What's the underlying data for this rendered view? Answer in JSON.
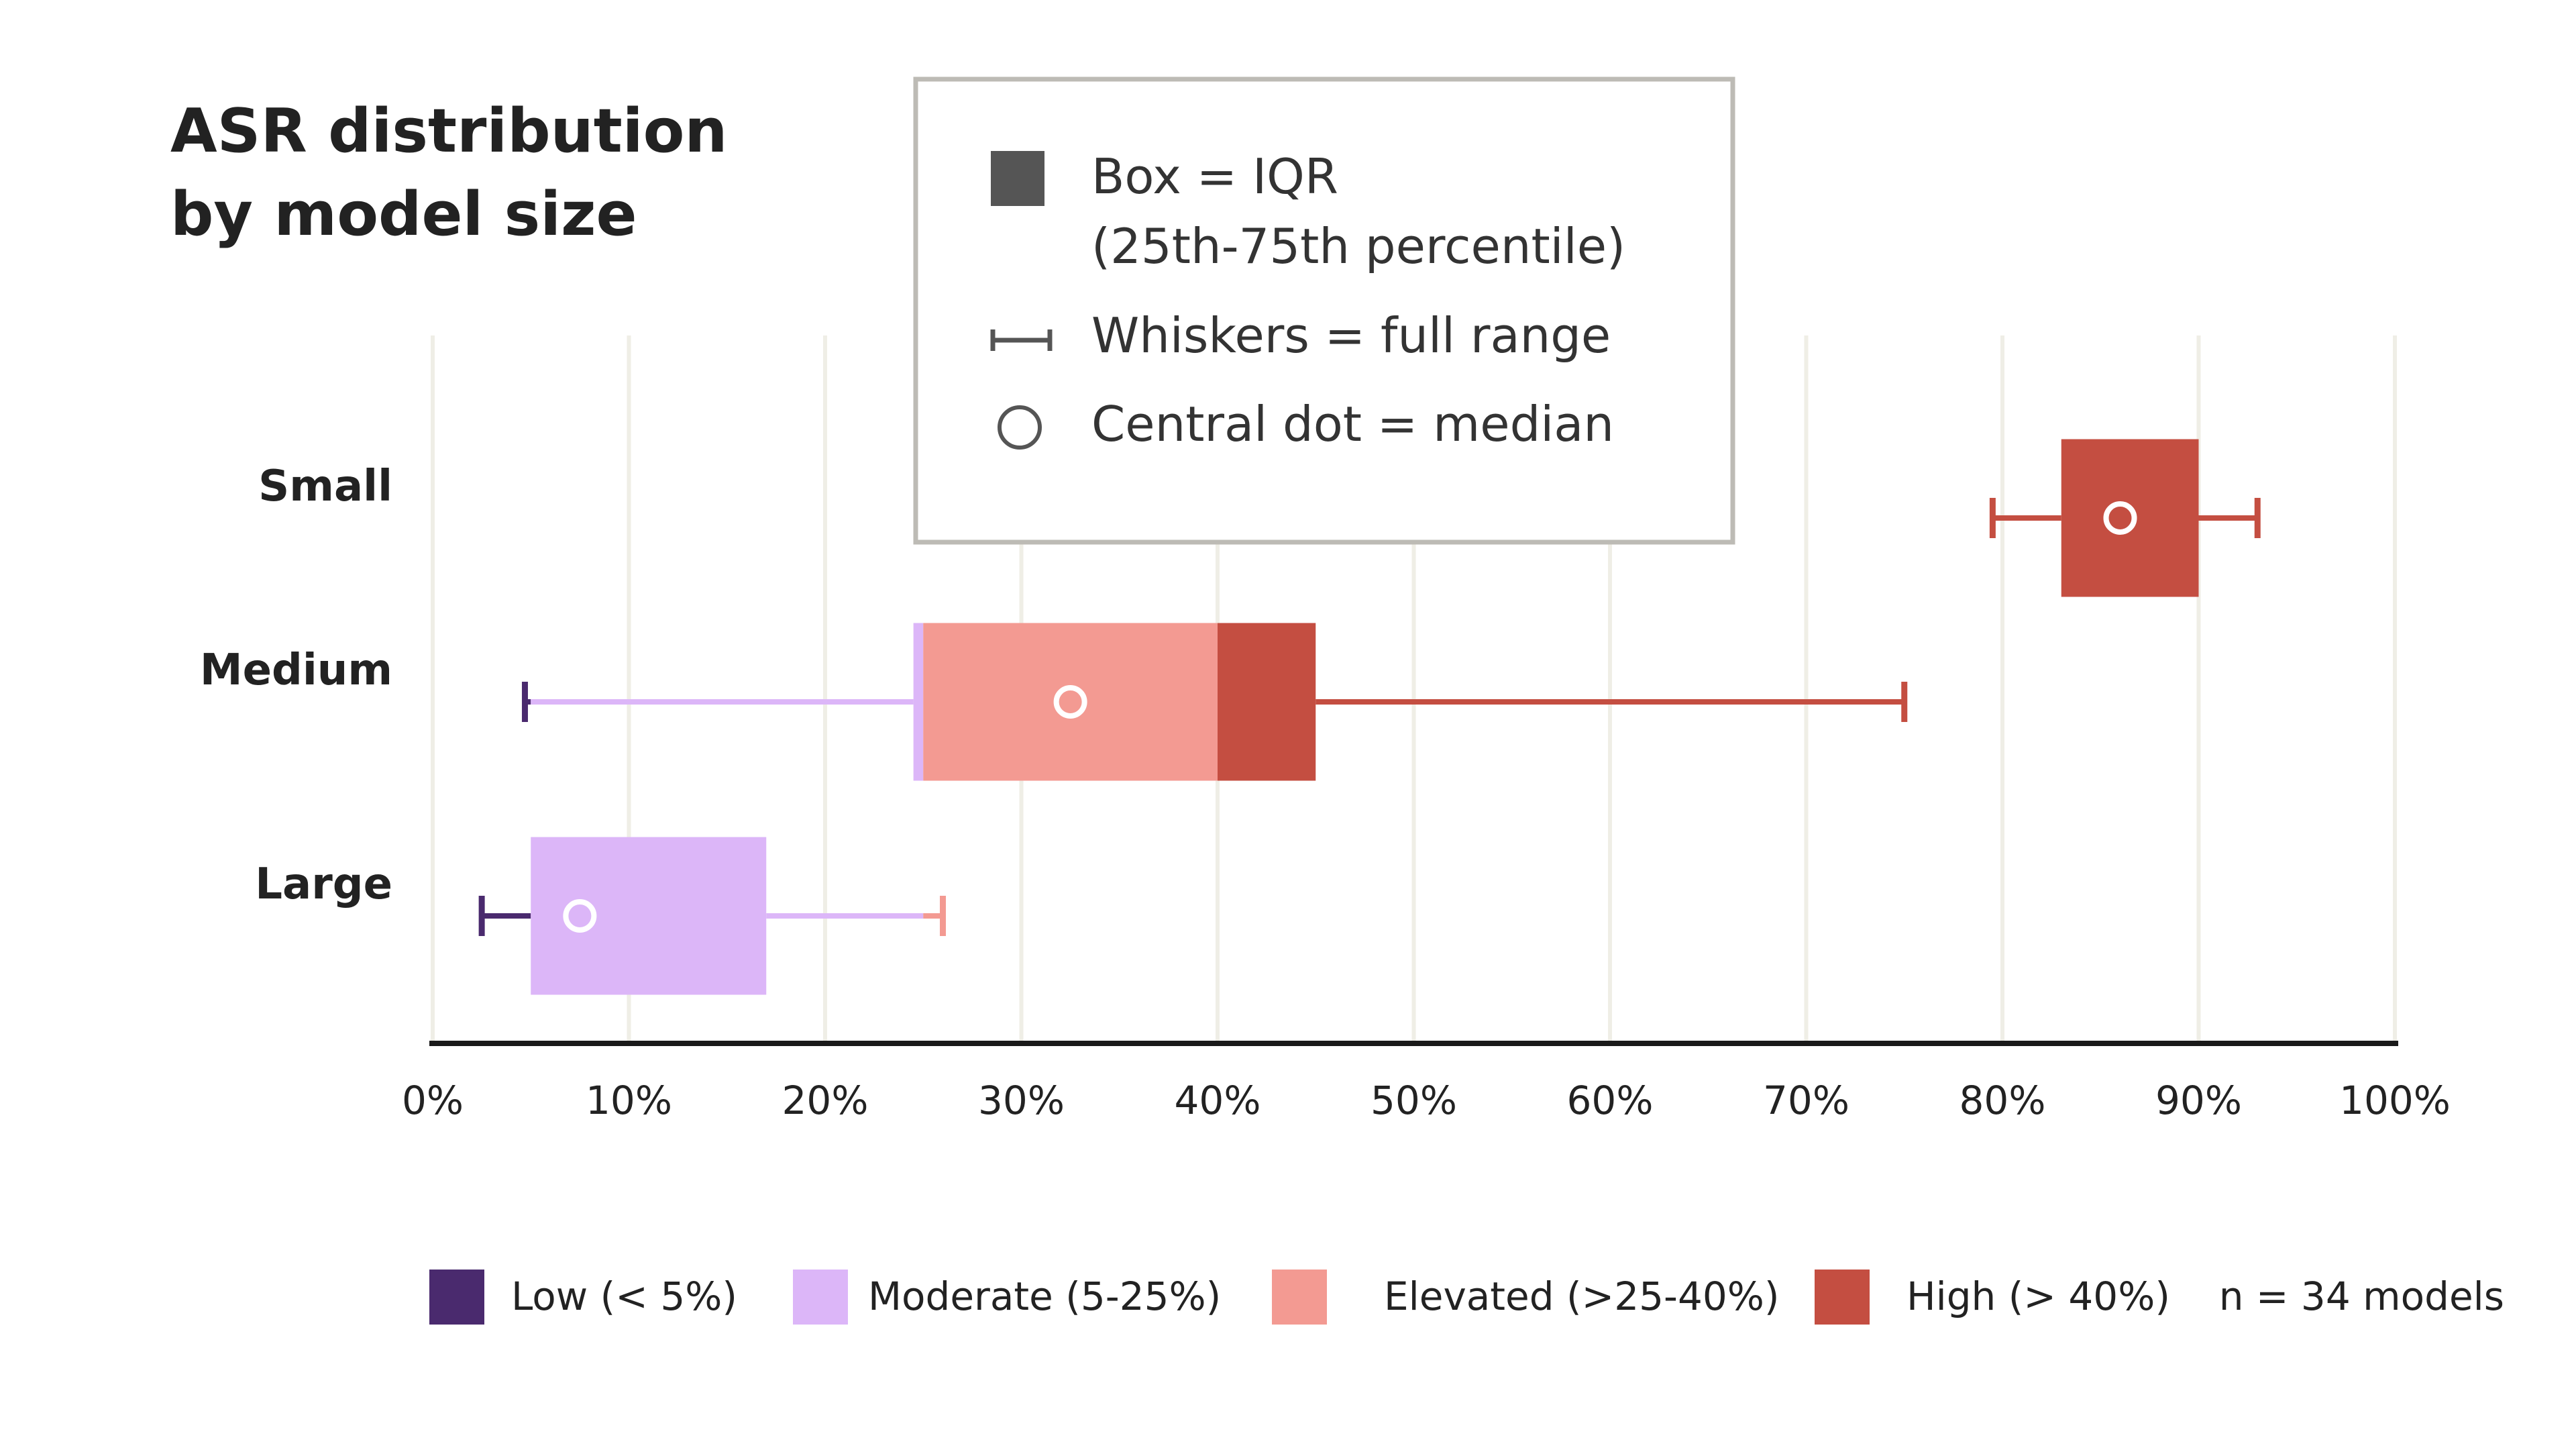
{
  "chart_data": {
    "type": "box",
    "title_lines": [
      "ASR distribution",
      "by model size"
    ],
    "xlim": [
      0,
      100
    ],
    "x_ticks": [
      "0%",
      "10%",
      "20%",
      "30%",
      "40%",
      "50%",
      "60%",
      "70%",
      "80%",
      "90%",
      "100%"
    ],
    "categories": [
      "Small",
      "Medium",
      "Large"
    ],
    "boxes": [
      {
        "category": "Small",
        "min": 79.5,
        "q1": 83,
        "median": 86,
        "q3": 90,
        "max": 93
      },
      {
        "category": "Medium",
        "min": 4.7,
        "q1": 24.5,
        "median": 32.5,
        "q3": 45,
        "max": 75
      },
      {
        "category": "Large",
        "min": 2.5,
        "q1": 5,
        "median": 7.5,
        "q3": 17,
        "max": 26
      }
    ],
    "risk_bands": [
      {
        "name": "Low (< 5%)",
        "from": 0,
        "to": 5,
        "color": "#4a2a6e"
      },
      {
        "name": "Moderate (5-25%)",
        "from": 5,
        "to": 25,
        "color": "#dcb6f8"
      },
      {
        "name": "Elevated (>25-40%)",
        "from": 25,
        "to": 40,
        "color": "#f39a92"
      },
      {
        "name": "High (> 40%)",
        "from": 40,
        "to": 100,
        "color": "#c44e41"
      }
    ],
    "legend": {
      "box": [
        "Box = IQR",
        "(25th-75th percentile)"
      ],
      "whiskers": "Whiskers = full range",
      "median": "Central dot = median"
    },
    "note": "n = 34 models",
    "grid": true
  }
}
